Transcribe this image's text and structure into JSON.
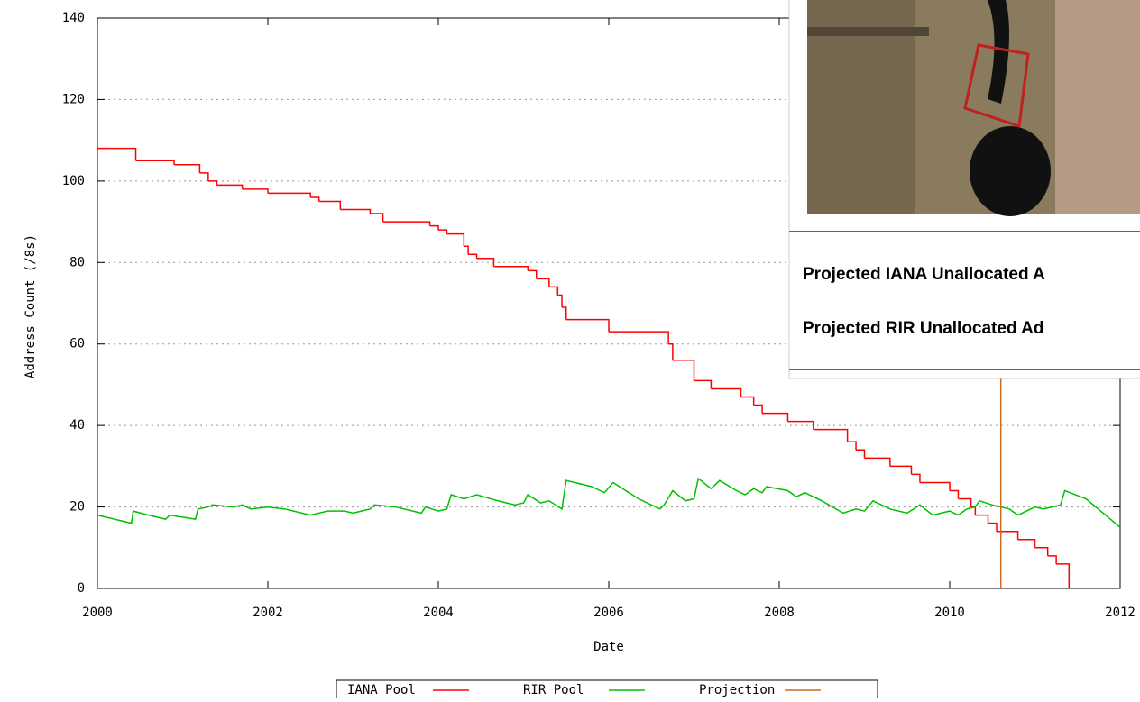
{
  "chart_data": {
    "type": "line",
    "xlabel": "Date",
    "ylabel": "Address Count (/8s)",
    "xlim": [
      2000,
      2012
    ],
    "xticks": [
      2000,
      2002,
      2004,
      2006,
      2008,
      2010,
      2012
    ],
    "ylim": [
      0,
      140
    ],
    "yticks": [
      0,
      20,
      40,
      60,
      80,
      100,
      120,
      140
    ],
    "grid": true,
    "legend": "bottom",
    "series": [
      {
        "name": "IANA Pool",
        "color": "#ff0000",
        "step": true,
        "x": [
          2000,
          2000.45,
          2000.9,
          2001.2,
          2001.3,
          2001.4,
          2001.7,
          2002.0,
          2002.5,
          2002.6,
          2002.85,
          2003.2,
          2003.35,
          2003.9,
          2004.0,
          2004.1,
          2004.3,
          2004.35,
          2004.45,
          2004.65,
          2005.05,
          2005.15,
          2005.3,
          2005.4,
          2005.45,
          2005.5,
          2006.0,
          2006.7,
          2006.75,
          2007.0,
          2007.2,
          2007.55,
          2007.7,
          2007.8,
          2008.1,
          2008.4,
          2008.8,
          2008.9,
          2009.0,
          2009.3,
          2009.55,
          2009.65,
          2010.0,
          2010.1,
          2010.25,
          2010.3,
          2010.45,
          2010.55,
          2010.8,
          2011.0,
          2011.15,
          2011.25,
          2011.4
        ],
        "values": [
          108,
          105,
          104,
          102,
          100,
          99,
          98,
          97,
          96,
          95,
          93,
          92,
          90,
          89,
          88,
          87,
          84,
          82,
          81,
          79,
          78,
          76,
          74,
          72,
          69,
          66,
          63,
          60,
          56,
          51,
          49,
          47,
          45,
          43,
          41,
          39,
          36,
          34,
          32,
          30,
          28,
          26,
          24,
          22,
          20,
          18,
          16,
          14,
          12,
          10,
          8,
          6,
          0
        ]
      },
      {
        "name": "RIR Pool",
        "color": "#00c000",
        "x": [
          2000,
          2000.1,
          2000.3,
          2000.4,
          2000.42,
          2000.6,
          2000.8,
          2000.85,
          2001.0,
          2001.15,
          2001.18,
          2001.3,
          2001.35,
          2001.6,
          2001.7,
          2001.8,
          2002.0,
          2002.2,
          2002.4,
          2002.5,
          2002.7,
          2002.9,
          2003.0,
          2003.2,
          2003.25,
          2003.5,
          2003.8,
          2003.85,
          2004.0,
          2004.1,
          2004.15,
          2004.3,
          2004.45,
          2004.7,
          2004.9,
          2005.0,
          2005.05,
          2005.2,
          2005.3,
          2005.45,
          2005.5,
          2005.8,
          2005.95,
          2006.05,
          2006.35,
          2006.6,
          2006.65,
          2006.75,
          2006.9,
          2007.0,
          2007.05,
          2007.2,
          2007.3,
          2007.5,
          2007.6,
          2007.7,
          2007.8,
          2007.85,
          2008.1,
          2008.2,
          2008.3,
          2008.5,
          2008.75,
          2008.9,
          2009.0,
          2009.1,
          2009.3,
          2009.5,
          2009.65,
          2009.8,
          2009.9,
          2010.0,
          2010.1,
          2010.2,
          2010.3,
          2010.35,
          2010.5,
          2010.7,
          2010.8,
          2011.0,
          2011.1,
          2011.3,
          2011.35,
          2011.6,
          2012.0
        ],
        "values": [
          18,
          17.5,
          16.5,
          16,
          19,
          18,
          17,
          18,
          17.5,
          17,
          19.5,
          20,
          20.5,
          20,
          20.5,
          19.5,
          20,
          19.5,
          18.5,
          18,
          19,
          19,
          18.5,
          19.5,
          20.5,
          20,
          18.5,
          20,
          19,
          19.5,
          23,
          22,
          23,
          21.5,
          20.5,
          21,
          23,
          21,
          21.5,
          19.5,
          26.5,
          25,
          23.5,
          26,
          22,
          19.5,
          20.5,
          24,
          21.5,
          22,
          27,
          24.5,
          26.5,
          24,
          23,
          24.5,
          23.5,
          25,
          24,
          22.5,
          23.5,
          21.5,
          18.5,
          19.5,
          19,
          21.5,
          19.5,
          18.5,
          20.5,
          18,
          18.5,
          19,
          18,
          19.5,
          20,
          21.5,
          20.5,
          19.5,
          18,
          20,
          19.5,
          20.5,
          24,
          22,
          15
        ]
      },
      {
        "name": "Projection",
        "color": "#d2691e",
        "x": [
          2010.6,
          2010.6
        ],
        "values": [
          0,
          140
        ]
      }
    ]
  },
  "overlay": {
    "line1": "Projected IANA Unallocated A",
    "line2": "Projected RIR Unallocated Ad"
  }
}
